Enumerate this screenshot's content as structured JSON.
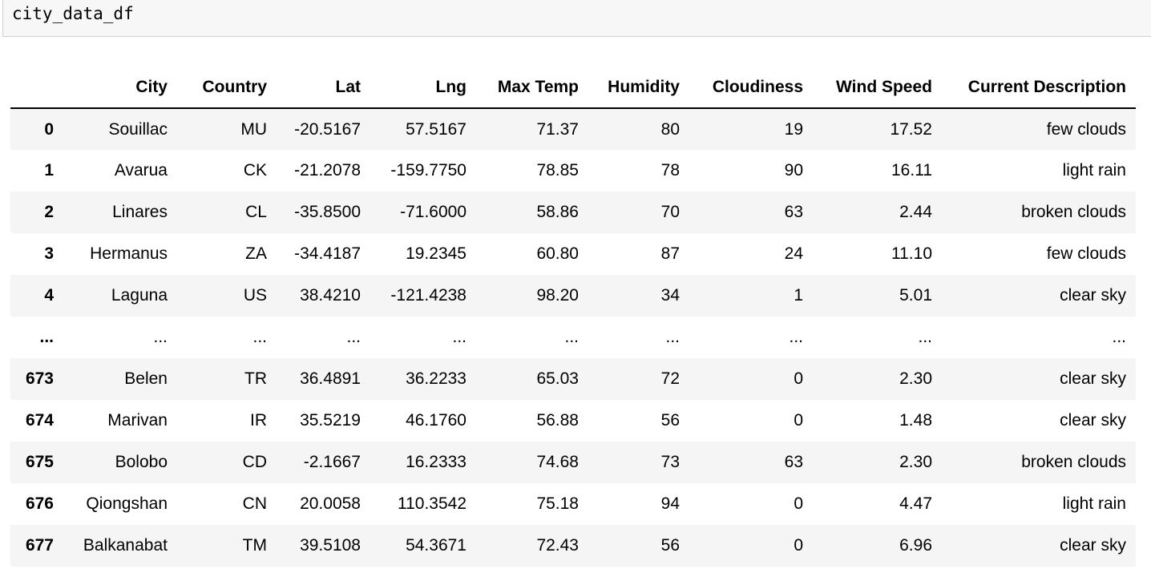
{
  "code_cell": {
    "input": "city_data_df"
  },
  "table": {
    "columns": [
      "",
      "City",
      "Country",
      "Lat",
      "Lng",
      "Max Temp",
      "Humidity",
      "Cloudiness",
      "Wind Speed",
      "Current Description"
    ],
    "rows": [
      [
        "0",
        "Souillac",
        "MU",
        "-20.5167",
        "57.5167",
        "71.37",
        "80",
        "19",
        "17.52",
        "few clouds"
      ],
      [
        "1",
        "Avarua",
        "CK",
        "-21.2078",
        "-159.7750",
        "78.85",
        "78",
        "90",
        "16.11",
        "light rain"
      ],
      [
        "2",
        "Linares",
        "CL",
        "-35.8500",
        "-71.6000",
        "58.86",
        "70",
        "63",
        "2.44",
        "broken clouds"
      ],
      [
        "3",
        "Hermanus",
        "ZA",
        "-34.4187",
        "19.2345",
        "60.80",
        "87",
        "24",
        "11.10",
        "few clouds"
      ],
      [
        "4",
        "Laguna",
        "US",
        "38.4210",
        "-121.4238",
        "98.20",
        "34",
        "1",
        "5.01",
        "clear sky"
      ],
      [
        "...",
        "...",
        "...",
        "...",
        "...",
        "...",
        "...",
        "...",
        "...",
        "..."
      ],
      [
        "673",
        "Belen",
        "TR",
        "36.4891",
        "36.2233",
        "65.03",
        "72",
        "0",
        "2.30",
        "clear sky"
      ],
      [
        "674",
        "Marivan",
        "IR",
        "35.5219",
        "46.1760",
        "56.88",
        "56",
        "0",
        "1.48",
        "clear sky"
      ],
      [
        "675",
        "Bolobo",
        "CD",
        "-2.1667",
        "16.2333",
        "74.68",
        "73",
        "63",
        "2.30",
        "broken clouds"
      ],
      [
        "676",
        "Qiongshan",
        "CN",
        "20.0058",
        "110.3542",
        "75.18",
        "94",
        "0",
        "4.47",
        "light rain"
      ],
      [
        "677",
        "Balkanabat",
        "TM",
        "39.5108",
        "54.3671",
        "72.43",
        "56",
        "0",
        "6.96",
        "clear sky"
      ]
    ]
  }
}
